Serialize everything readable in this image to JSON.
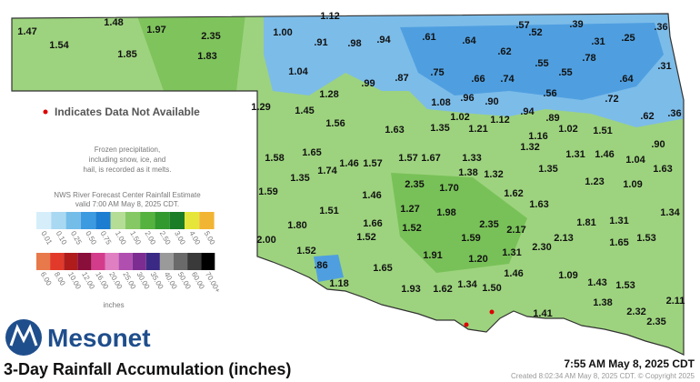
{
  "title": "3-Day Rainfall Accumulation (inches)",
  "brand": "Mesonet",
  "timestamp": "7:55 AM May 8, 2025 CDT",
  "footer": "Created 8:02:34 AM May 8, 2025 CDT. © Copyright 2025",
  "notice": "Indicates Data Not Available",
  "note": [
    "Frozen precipitation,",
    "including snow, ice, and",
    "hail, is recorded as it melts."
  ],
  "legend": {
    "source": [
      "NWS River Forecast Center Rainfall Estimate",
      "valid 7:00 AM May 8, 2025 CDT."
    ],
    "unit": "inches",
    "rows": [
      {
        "labels": [
          "0.01",
          "0.10",
          "0.25",
          "0.50",
          "0.75",
          "1.00",
          "1.50",
          "2.00",
          "2.50",
          "3.00",
          "4.00",
          "5.00"
        ],
        "colors": [
          "#d6eefa",
          "#a9d8f2",
          "#74bde9",
          "#3c9be0",
          "#1d7dd1",
          "#b5dd95",
          "#86c964",
          "#56b23e",
          "#31992e",
          "#1b7d26",
          "#e6e63a",
          "#f2b533"
        ]
      },
      {
        "labels": [
          "6.00",
          "8.00",
          "10.00",
          "12.00",
          "16.00",
          "20.00",
          "25.00",
          "30.00",
          "35.00",
          "40.00",
          "50.00",
          "60.00",
          "70.00+"
        ],
        "colors": [
          "#e8794b",
          "#e23a2a",
          "#b01c1c",
          "#8a0e3a",
          "#d33c8a",
          "#e07fc1",
          "#b04fb0",
          "#7d2d91",
          "#3a2a85",
          "#9a9a9a",
          "#6a6a6a",
          "#3a3a3a",
          "#000000"
        ]
      }
    ]
  },
  "stations": [
    "1.47",
    "1.54",
    "1.48",
    "1.97",
    "1.85",
    "2.35",
    "1.83",
    "1.12",
    "1.00",
    ".91",
    ".98",
    ".94",
    ".61",
    ".64",
    ".57",
    ".52",
    ".39",
    ".36",
    ".31",
    ".25",
    ".62",
    ".78",
    ".55",
    ".55",
    ".64",
    ".31",
    "1.04",
    ".75",
    ".66",
    ".74",
    ".87",
    ".99",
    "1.28",
    ".56",
    ".72",
    "1.08",
    ".96",
    ".90",
    "1.29",
    "1.45",
    "1.02",
    ".94",
    ".62",
    ".36",
    "1.12",
    ".89",
    "1.56",
    "1.63",
    "1.35",
    "1.21",
    "1.02",
    "1.51",
    "1.16",
    ".90",
    "1.65",
    "1.58",
    "1.32",
    "1.31",
    "1.46",
    "1.04",
    "1.63",
    "1.46",
    "1.57",
    "1.57",
    "1.67",
    "1.33",
    "1.74",
    "1.35",
    "1.38",
    "1.32",
    "1.35",
    "1.23",
    "1.09",
    "2.35",
    "1.70",
    "1.62",
    "1.59",
    "1.46",
    "1.63",
    "1.51",
    "1.27",
    "1.98",
    "1.34",
    "1.80",
    "1.66",
    "1.52",
    "2.35",
    "2.17",
    "1.81",
    "1.31",
    "1.52",
    "1.59",
    "2.13",
    "1.53",
    "2.00",
    "1.65",
    "2.30",
    "1.52",
    "1.31",
    "1.91",
    "1.20",
    ".86",
    "1.65",
    "1.46",
    "1.09",
    "1.43",
    "1.18",
    "1.53",
    "1.93",
    "1.62",
    "1.34",
    "1.50",
    "2.11",
    "1.38",
    "1.41",
    "2.32",
    "2.35"
  ]
}
